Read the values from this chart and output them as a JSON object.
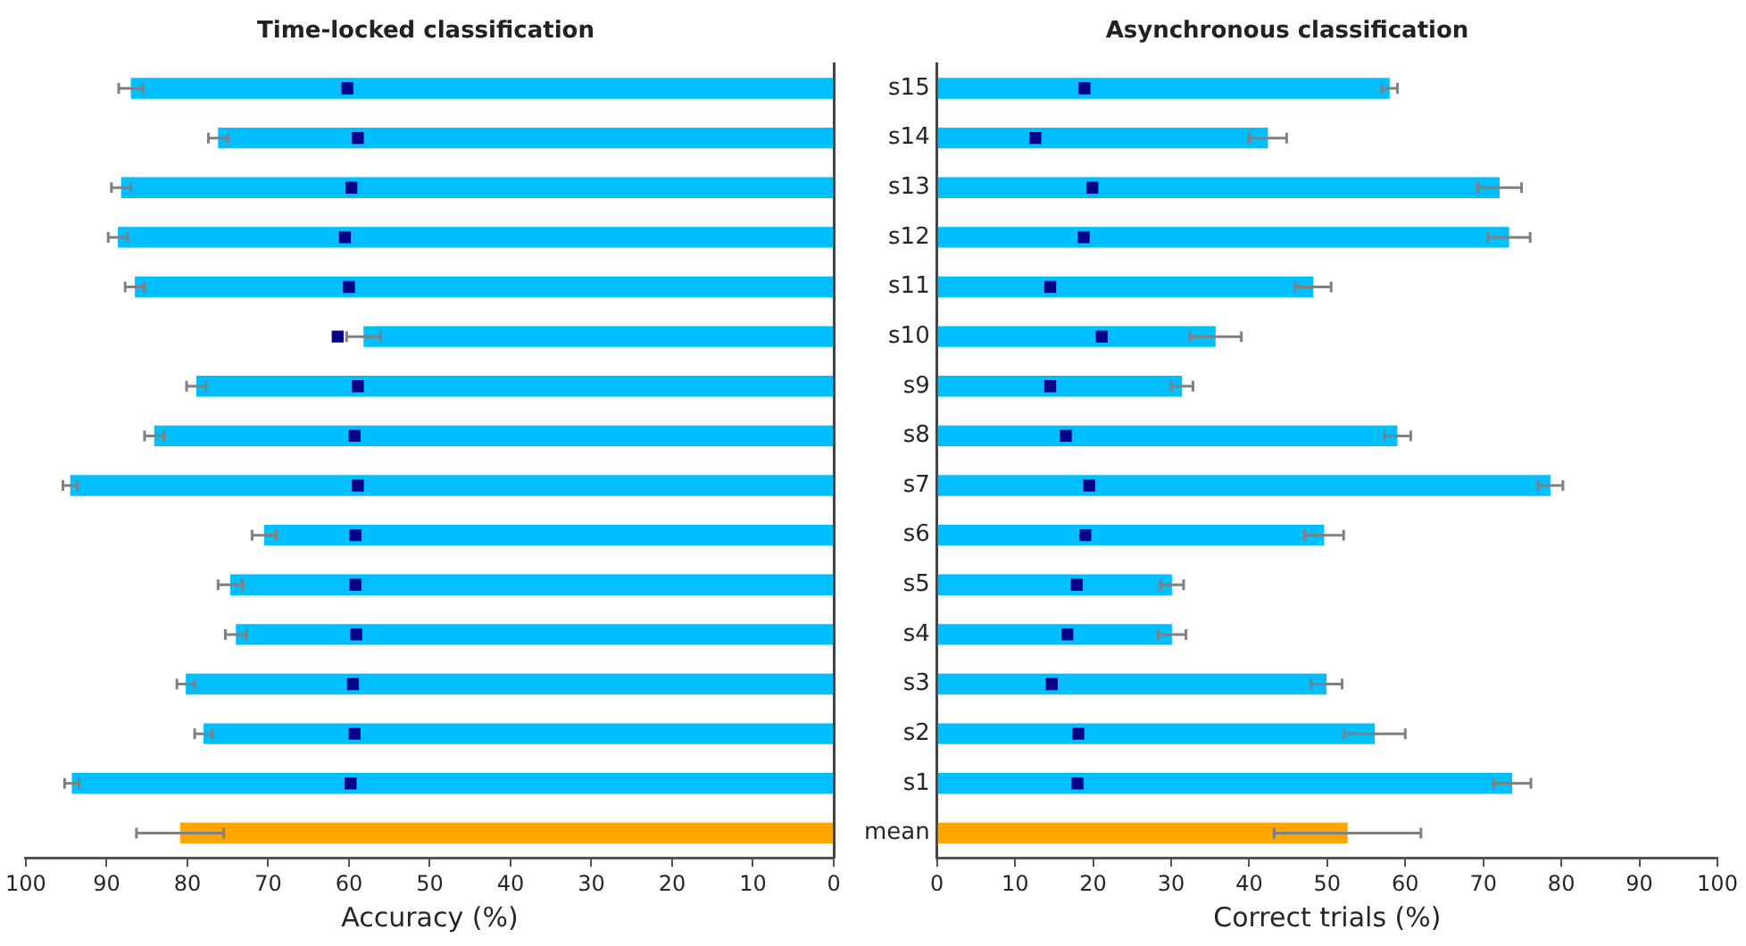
{
  "chart_data": [
    {
      "type": "bar",
      "orientation": "horizontal",
      "title": "Time-locked classification",
      "xlabel": "Accuracy (%)",
      "categories": [
        null,
        null,
        null,
        null,
        null,
        null,
        null,
        null,
        null,
        null,
        null,
        null,
        null,
        null,
        null,
        null
      ],
      "xlim": [
        100,
        0
      ],
      "xticks": [
        100,
        90,
        80,
        70,
        60,
        50,
        40,
        30,
        20,
        10,
        0
      ],
      "tick_labels": "x",
      "grid": false,
      "series": [
        {
          "colors": [
            "#00bfff",
            "#00bfff",
            "#00bfff",
            "#00bfff",
            "#00bfff",
            "#00bfff",
            "#00bfff",
            "#00bfff",
            "#00bfff",
            "#00bfff",
            "#00bfff",
            "#00bfff",
            "#00bfff",
            "#00bfff",
            "#00bfff",
            "#ffa500"
          ],
          "values": [
            87.0,
            76.2,
            88.2,
            88.6,
            86.5,
            58.2,
            78.9,
            84.1,
            94.5,
            70.5,
            74.7,
            74.0,
            80.2,
            78.0,
            94.3,
            80.9
          ],
          "errors": [
            1.5,
            1.2,
            1.2,
            1.2,
            1.2,
            2.1,
            1.2,
            1.2,
            0.9,
            1.5,
            1.5,
            1.3,
            1.1,
            1.1,
            0.9,
            5.4
          ]
        },
        {
          "type": "scatter",
          "color": "#00008b",
          "marker": "square",
          "values": [
            60.2,
            58.9,
            59.7,
            60.5,
            60.0,
            61.4,
            58.9,
            59.3,
            58.9,
            59.2,
            59.2,
            59.1,
            59.5,
            59.3,
            59.8,
            null
          ]
        }
      ]
    },
    {
      "type": "bar",
      "orientation": "horizontal",
      "title": "Asynchronous classification",
      "xlabel": "Correct trials (%)",
      "categories": [
        "s15",
        "s14",
        "s13",
        "s12",
        "s11",
        "s10",
        "s9",
        "s8",
        "s7",
        "s6",
        "s5",
        "s4",
        "s3",
        "s2",
        "s1",
        "mean"
      ],
      "xlim": [
        0,
        100
      ],
      "xticks": [
        0,
        10,
        20,
        30,
        40,
        50,
        60,
        70,
        80,
        90,
        100
      ],
      "grid": false,
      "series": [
        {
          "colors": [
            "#00bfff",
            "#00bfff",
            "#00bfff",
            "#00bfff",
            "#00bfff",
            "#00bfff",
            "#00bfff",
            "#00bfff",
            "#00bfff",
            "#00bfff",
            "#00bfff",
            "#00bfff",
            "#00bfff",
            "#00bfff",
            "#00bfff",
            "#ffa500"
          ],
          "values": [
            58.0,
            42.4,
            72.1,
            73.3,
            48.2,
            35.7,
            31.4,
            59.0,
            78.6,
            49.6,
            30.1,
            30.1,
            49.9,
            56.1,
            73.7,
            52.6
          ],
          "errors": [
            1.0,
            2.4,
            2.8,
            2.7,
            2.3,
            3.3,
            1.4,
            1.7,
            1.6,
            2.5,
            1.5,
            1.8,
            2.0,
            3.9,
            2.4,
            9.4
          ]
        },
        {
          "type": "scatter",
          "color": "#00008b",
          "marker": "square",
          "values": [
            18.9,
            12.6,
            19.9,
            18.8,
            14.5,
            21.1,
            14.5,
            16.5,
            19.5,
            19.0,
            17.9,
            16.7,
            14.7,
            18.1,
            18.0,
            null
          ]
        }
      ]
    }
  ]
}
